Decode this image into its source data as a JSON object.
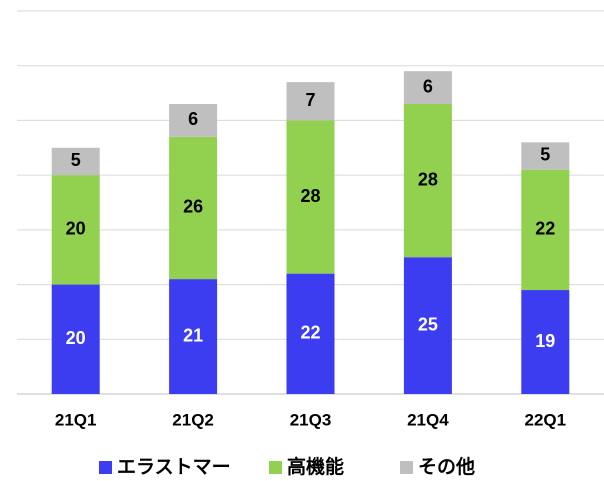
{
  "chart_data": {
    "type": "stacked_bar",
    "categories": [
      "21Q1",
      "21Q2",
      "21Q3",
      "21Q4",
      "22Q1"
    ],
    "series": [
      {
        "name": "エラストマー",
        "color": "#3c3cf0",
        "values": [
          20,
          21,
          22,
          25,
          19
        ]
      },
      {
        "name": "高機能",
        "color": "#92d050",
        "values": [
          20,
          26,
          28,
          28,
          22
        ]
      },
      {
        "name": "その他",
        "color": "#bfbfbf",
        "values": [
          5,
          6,
          7,
          6,
          5
        ]
      }
    ],
    "ylim": [
      0,
      70
    ],
    "yticks": [
      0,
      10,
      20,
      30,
      40,
      50,
      60,
      70
    ],
    "grid": true
  }
}
